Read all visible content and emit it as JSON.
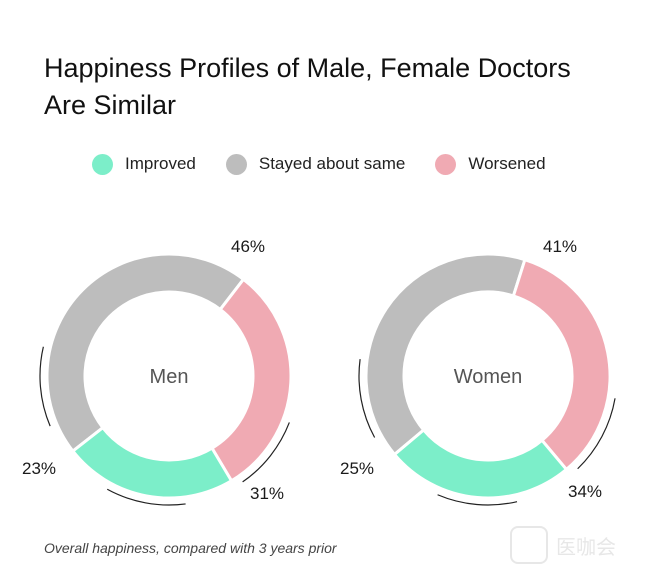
{
  "chart_data": {
    "type": "pie",
    "title": "Happiness Profiles of Male, Female Doctors Are Similar",
    "legend": [
      "Improved",
      "Stayed about same",
      "Worsened"
    ],
    "colors": {
      "Improved": "#7ceec9",
      "Stayed about same": "#bdbdbd",
      "Worsened": "#f0aab3"
    },
    "charts": [
      {
        "label": "Men",
        "values": {
          "Improved": 23,
          "Stayed about same": 46,
          "Worsened": 31
        }
      },
      {
        "label": "Women",
        "values": {
          "Improved": 25,
          "Stayed about same": 41,
          "Worsened": 34
        }
      }
    ],
    "footnote": "Overall happiness, compared with 3 years prior"
  },
  "watermark": {
    "text": "医咖会"
  }
}
